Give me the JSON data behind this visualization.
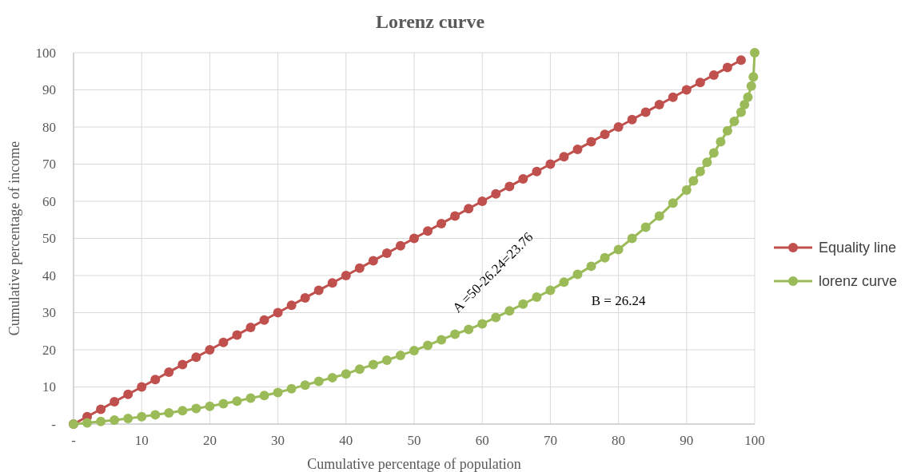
{
  "chart_data": {
    "type": "line",
    "title": "Lorenz curve",
    "xlabel": "Cumulative percentage of population",
    "ylabel": "Cumulative percentage of income",
    "xlim": [
      0,
      100
    ],
    "ylim": [
      0,
      100
    ],
    "xticks": [
      {
        "value": 0,
        "label": "-"
      },
      10,
      20,
      30,
      40,
      50,
      60,
      70,
      80,
      90,
      100
    ],
    "yticks": [
      {
        "value": 0,
        "label": "-"
      },
      10,
      20,
      30,
      40,
      50,
      60,
      70,
      80,
      90,
      100
    ],
    "grid": true,
    "legend": "right",
    "marker": "circle",
    "line_style": "solid",
    "series": [
      {
        "name": "Equality line",
        "color": "#c0504d",
        "x": [
          0,
          2,
          4,
          6,
          8,
          10,
          12,
          14,
          16,
          18,
          20,
          22,
          24,
          26,
          28,
          30,
          32,
          34,
          36,
          38,
          40,
          42,
          44,
          46,
          48,
          50,
          52,
          54,
          56,
          58,
          60,
          62,
          64,
          66,
          68,
          70,
          72,
          74,
          76,
          78,
          80,
          82,
          84,
          86,
          88,
          90,
          92,
          94,
          96,
          98
        ],
        "values": [
          0,
          2,
          4,
          6,
          8,
          10,
          12,
          14,
          16,
          18,
          20,
          22,
          24,
          26,
          28,
          30,
          32,
          34,
          36,
          38,
          40,
          42,
          44,
          46,
          48,
          50,
          52,
          54,
          56,
          58,
          60,
          62,
          64,
          66,
          68,
          70,
          72,
          74,
          76,
          78,
          80,
          82,
          84,
          86,
          88,
          90,
          92,
          94,
          96,
          98
        ]
      },
      {
        "name": "lorenz curve",
        "color": "#9bbb59",
        "x": [
          0,
          2,
          4,
          6,
          8,
          10,
          12,
          14,
          16,
          18,
          20,
          22,
          24,
          26,
          28,
          30,
          32,
          34,
          36,
          38,
          40,
          42,
          44,
          46,
          48,
          50,
          52,
          54,
          56,
          58,
          60,
          62,
          64,
          66,
          68,
          70,
          72,
          74,
          76,
          78,
          80,
          82,
          84,
          86,
          88,
          90,
          91,
          92,
          93,
          94,
          95,
          96,
          97,
          98,
          98.5,
          99,
          99.5,
          99.8,
          100
        ],
        "values": [
          0,
          0.3,
          0.7,
          1.1,
          1.5,
          2,
          2.5,
          3,
          3.6,
          4.2,
          4.8,
          5.5,
          6.2,
          7,
          7.7,
          8.5,
          9.5,
          10.5,
          11.5,
          12.5,
          13.5,
          14.8,
          16,
          17.2,
          18.5,
          19.8,
          21.2,
          22.7,
          24.2,
          25.5,
          27,
          28.7,
          30.5,
          32.3,
          34.2,
          36,
          38.2,
          40.3,
          42.5,
          44.8,
          47,
          50,
          53,
          56,
          59.5,
          63,
          65.5,
          68,
          70.5,
          73,
          76,
          79,
          81.5,
          84,
          86,
          88,
          91,
          93.5,
          100
        ]
      }
    ],
    "annotations": [
      "A =50-26.24=23.76",
      "B = 26.24"
    ]
  }
}
